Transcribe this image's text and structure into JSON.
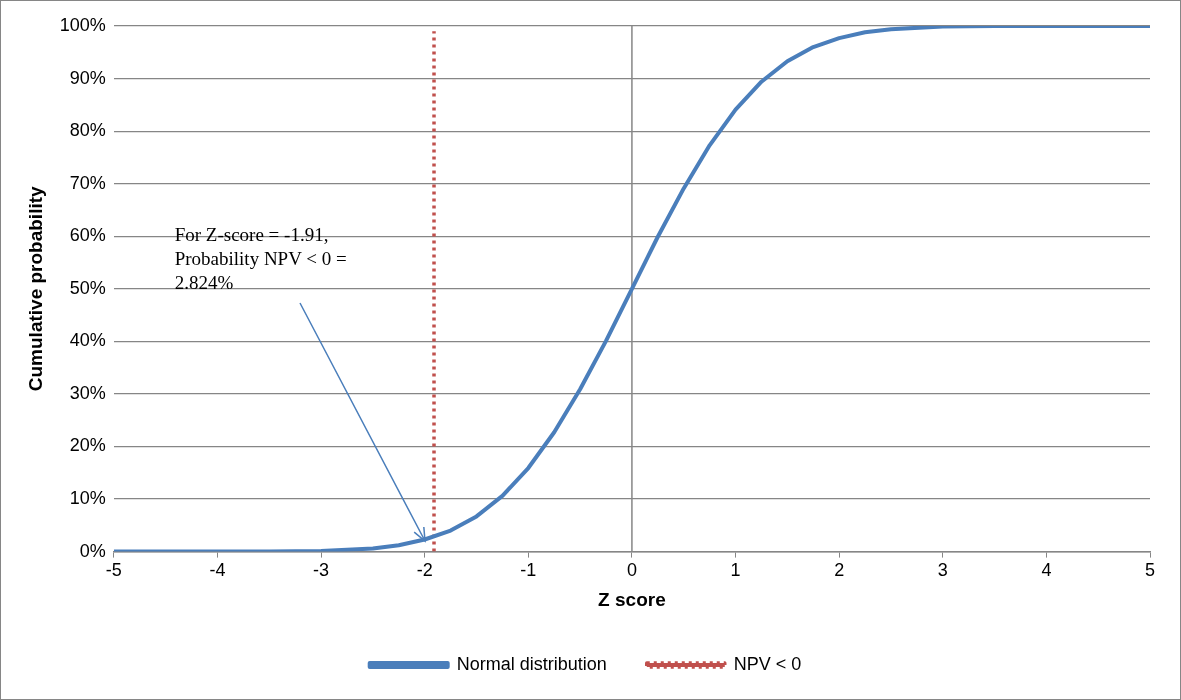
{
  "chart_data": {
    "type": "line",
    "xlabel": "Z score",
    "ylabel": "Cumulative probability",
    "xlim": [
      -5,
      5
    ],
    "xticks": [
      -5,
      -4,
      -3,
      -2,
      -1,
      0,
      1,
      2,
      3,
      4,
      5
    ],
    "ylim": [
      0,
      100
    ],
    "yticks": [
      {
        "value": 0,
        "label": "0%"
      },
      {
        "value": 10,
        "label": "10%"
      },
      {
        "value": 20,
        "label": "20%"
      },
      {
        "value": 30,
        "label": "30%"
      },
      {
        "value": 40,
        "label": "40%"
      },
      {
        "value": 50,
        "label": "50%"
      },
      {
        "value": 60,
        "label": "60%"
      },
      {
        "value": 70,
        "label": "70%"
      },
      {
        "value": 80,
        "label": "80%"
      },
      {
        "value": 90,
        "label": "90%"
      },
      {
        "value": 100,
        "label": "100%"
      }
    ],
    "grid": "y",
    "legend": "bottom",
    "marker": "none",
    "series": [
      {
        "name": "Normal distribution",
        "color": "#4a7ebb",
        "line_style": "solid",
        "x": [
          -5,
          -4,
          -3.5,
          -3,
          -2.5,
          -2.25,
          -2,
          -1.75,
          -1.5,
          -1.25,
          -1,
          -0.75,
          -0.5,
          -0.25,
          0,
          0.25,
          0.5,
          0.75,
          1,
          1.25,
          1.5,
          1.75,
          2,
          2.25,
          2.5,
          3,
          3.5,
          4,
          5
        ],
        "values": [
          0,
          0,
          0,
          0.1,
          0.6,
          1.2,
          2.3,
          4,
          6.7,
          10.6,
          15.9,
          22.7,
          30.9,
          40.1,
          50,
          59.9,
          69.1,
          77.3,
          84.1,
          89.4,
          93.3,
          96,
          97.7,
          98.8,
          99.4,
          99.9,
          100,
          100,
          100
        ]
      },
      {
        "name": "NPV < 0",
        "color": "#c0504d",
        "line_style": "dotted",
        "x": [
          -1.91,
          -1.91
        ],
        "values": [
          0,
          99
        ]
      }
    ],
    "ref_lines": [
      {
        "axis": "x",
        "value": 0,
        "color": "#868686",
        "line_style": "solid"
      }
    ],
    "annotations": [
      {
        "text": "For Z-score = -1.91, Probability NPV < 0 = 2.824%",
        "x": -2,
        "y": 2
      }
    ]
  }
}
